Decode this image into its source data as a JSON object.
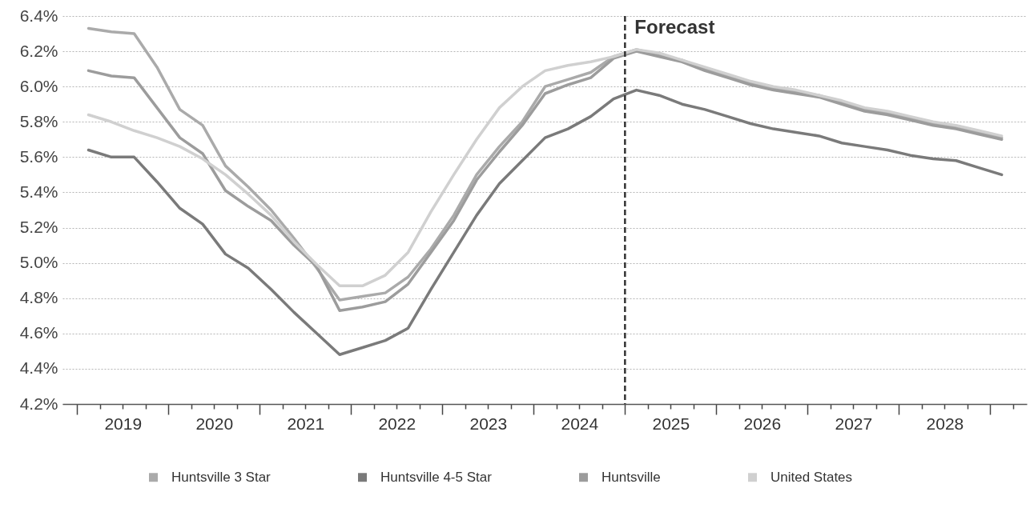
{
  "chart_data": {
    "type": "line",
    "x": [
      2019.125,
      2019.375,
      2019.625,
      2019.875,
      2020.125,
      2020.375,
      2020.625,
      2020.875,
      2021.125,
      2021.375,
      2021.625,
      2021.875,
      2022.125,
      2022.375,
      2022.625,
      2022.875,
      2023.125,
      2023.375,
      2023.625,
      2023.875,
      2024.125,
      2024.375,
      2024.625,
      2024.875,
      2025.125,
      2025.375,
      2025.625,
      2025.875,
      2026.125,
      2026.375,
      2026.625,
      2026.875,
      2027.125,
      2027.375,
      2027.625,
      2027.875,
      2028.125,
      2028.375,
      2028.625,
      2028.875,
      2029.125
    ],
    "series": [
      {
        "name": "Huntsville 3 Star",
        "color": "#aaaaaa",
        "values": [
          6.33,
          6.31,
          6.3,
          6.11,
          5.87,
          5.78,
          5.55,
          5.43,
          5.3,
          5.14,
          4.97,
          4.79,
          4.81,
          4.83,
          4.92,
          5.08,
          5.27,
          5.5,
          5.66,
          5.8,
          6.0,
          6.04,
          6.08,
          6.17,
          6.21,
          6.18,
          6.15,
          6.1,
          6.06,
          6.02,
          5.99,
          5.97,
          5.95,
          5.91,
          5.87,
          5.85,
          5.82,
          5.79,
          5.77,
          5.74,
          5.71
        ]
      },
      {
        "name": "Huntsville 4-5 Star",
        "color": "#7a7a7a",
        "values": [
          5.64,
          5.6,
          5.6,
          5.46,
          5.31,
          5.22,
          5.05,
          4.97,
          4.85,
          4.72,
          4.6,
          4.48,
          4.52,
          4.56,
          4.63,
          4.85,
          5.06,
          5.27,
          5.45,
          5.58,
          5.71,
          5.76,
          5.83,
          5.93,
          5.98,
          5.95,
          5.9,
          5.87,
          5.83,
          5.79,
          5.76,
          5.74,
          5.72,
          5.68,
          5.66,
          5.64,
          5.61,
          5.59,
          5.58,
          5.54,
          5.5
        ]
      },
      {
        "name": "Huntsville",
        "color": "#9c9c9c",
        "values": [
          6.09,
          6.06,
          6.05,
          5.88,
          5.71,
          5.62,
          5.41,
          5.32,
          5.24,
          5.1,
          4.98,
          4.73,
          4.75,
          4.78,
          4.88,
          5.06,
          5.24,
          5.47,
          5.63,
          5.78,
          5.96,
          6.01,
          6.05,
          6.16,
          6.2,
          6.17,
          6.14,
          6.09,
          6.05,
          6.01,
          5.98,
          5.96,
          5.94,
          5.9,
          5.86,
          5.84,
          5.81,
          5.78,
          5.76,
          5.73,
          5.7
        ]
      },
      {
        "name": "United States",
        "color": "#d0d0d0",
        "values": [
          5.84,
          5.8,
          5.75,
          5.71,
          5.66,
          5.59,
          5.5,
          5.39,
          5.27,
          5.12,
          4.99,
          4.87,
          4.87,
          4.93,
          5.06,
          5.29,
          5.5,
          5.7,
          5.88,
          6.0,
          6.09,
          6.12,
          6.14,
          6.17,
          6.21,
          6.19,
          6.15,
          6.11,
          6.07,
          6.03,
          6.0,
          5.98,
          5.95,
          5.92,
          5.88,
          5.86,
          5.83,
          5.8,
          5.78,
          5.75,
          5.72
        ]
      }
    ],
    "xlim": [
      2018.84,
      2029.4
    ],
    "xticks": [
      {
        "value": 2019,
        "label": null
      },
      {
        "value": 2019.25,
        "label": null
      },
      {
        "value": 2019.5,
        "label": "2019"
      },
      {
        "value": 2019.75,
        "label": null
      },
      {
        "value": 2020,
        "label": null
      },
      {
        "value": 2020.25,
        "label": null
      },
      {
        "value": 2020.5,
        "label": "2020"
      },
      {
        "value": 2020.75,
        "label": null
      },
      {
        "value": 2021,
        "label": null
      },
      {
        "value": 2021.25,
        "label": null
      },
      {
        "value": 2021.5,
        "label": "2021"
      },
      {
        "value": 2021.75,
        "label": null
      },
      {
        "value": 2022,
        "label": null
      },
      {
        "value": 2022.25,
        "label": null
      },
      {
        "value": 2022.5,
        "label": "2022"
      },
      {
        "value": 2022.75,
        "label": null
      },
      {
        "value": 2023,
        "label": null
      },
      {
        "value": 2023.25,
        "label": null
      },
      {
        "value": 2023.5,
        "label": "2023"
      },
      {
        "value": 2023.75,
        "label": null
      },
      {
        "value": 2024,
        "label": null
      },
      {
        "value": 2024.25,
        "label": null
      },
      {
        "value": 2024.5,
        "label": "2024"
      },
      {
        "value": 2024.75,
        "label": null
      },
      {
        "value": 2025,
        "label": null
      },
      {
        "value": 2025.25,
        "label": null
      },
      {
        "value": 2025.5,
        "label": "2025"
      },
      {
        "value": 2025.75,
        "label": null
      },
      {
        "value": 2026,
        "label": null
      },
      {
        "value": 2026.25,
        "label": null
      },
      {
        "value": 2026.5,
        "label": "2026"
      },
      {
        "value": 2026.75,
        "label": null
      },
      {
        "value": 2027,
        "label": null
      },
      {
        "value": 2027.25,
        "label": null
      },
      {
        "value": 2027.5,
        "label": "2027"
      },
      {
        "value": 2027.75,
        "label": null
      },
      {
        "value": 2028,
        "label": null
      },
      {
        "value": 2028.25,
        "label": null
      },
      {
        "value": 2028.5,
        "label": "2028"
      },
      {
        "value": 2028.75,
        "label": null
      },
      {
        "value": 2029,
        "label": null
      },
      {
        "value": 2029.25,
        "label": null
      }
    ],
    "ylim": [
      4.2,
      6.4
    ],
    "yticks": [
      {
        "value": 4.2,
        "label": "4.2%"
      },
      {
        "value": 4.4,
        "label": "4.4%"
      },
      {
        "value": 4.6,
        "label": "4.6%"
      },
      {
        "value": 4.8,
        "label": "4.8%"
      },
      {
        "value": 5.0,
        "label": "5.0%"
      },
      {
        "value": 5.2,
        "label": "5.2%"
      },
      {
        "value": 5.4,
        "label": "5.4%"
      },
      {
        "value": 5.6,
        "label": "5.6%"
      },
      {
        "value": 5.8,
        "label": "5.8%"
      },
      {
        "value": 6.0,
        "label": "6.0%"
      },
      {
        "value": 6.2,
        "label": "6.2%"
      },
      {
        "value": 6.4,
        "label": "6.4%"
      }
    ],
    "grid": "y",
    "legend": "bottom",
    "ref_lines": [
      {
        "axis": "x",
        "value": 2025,
        "label": "Forecast",
        "color": "#333333",
        "line_style": "dashed"
      }
    ]
  }
}
